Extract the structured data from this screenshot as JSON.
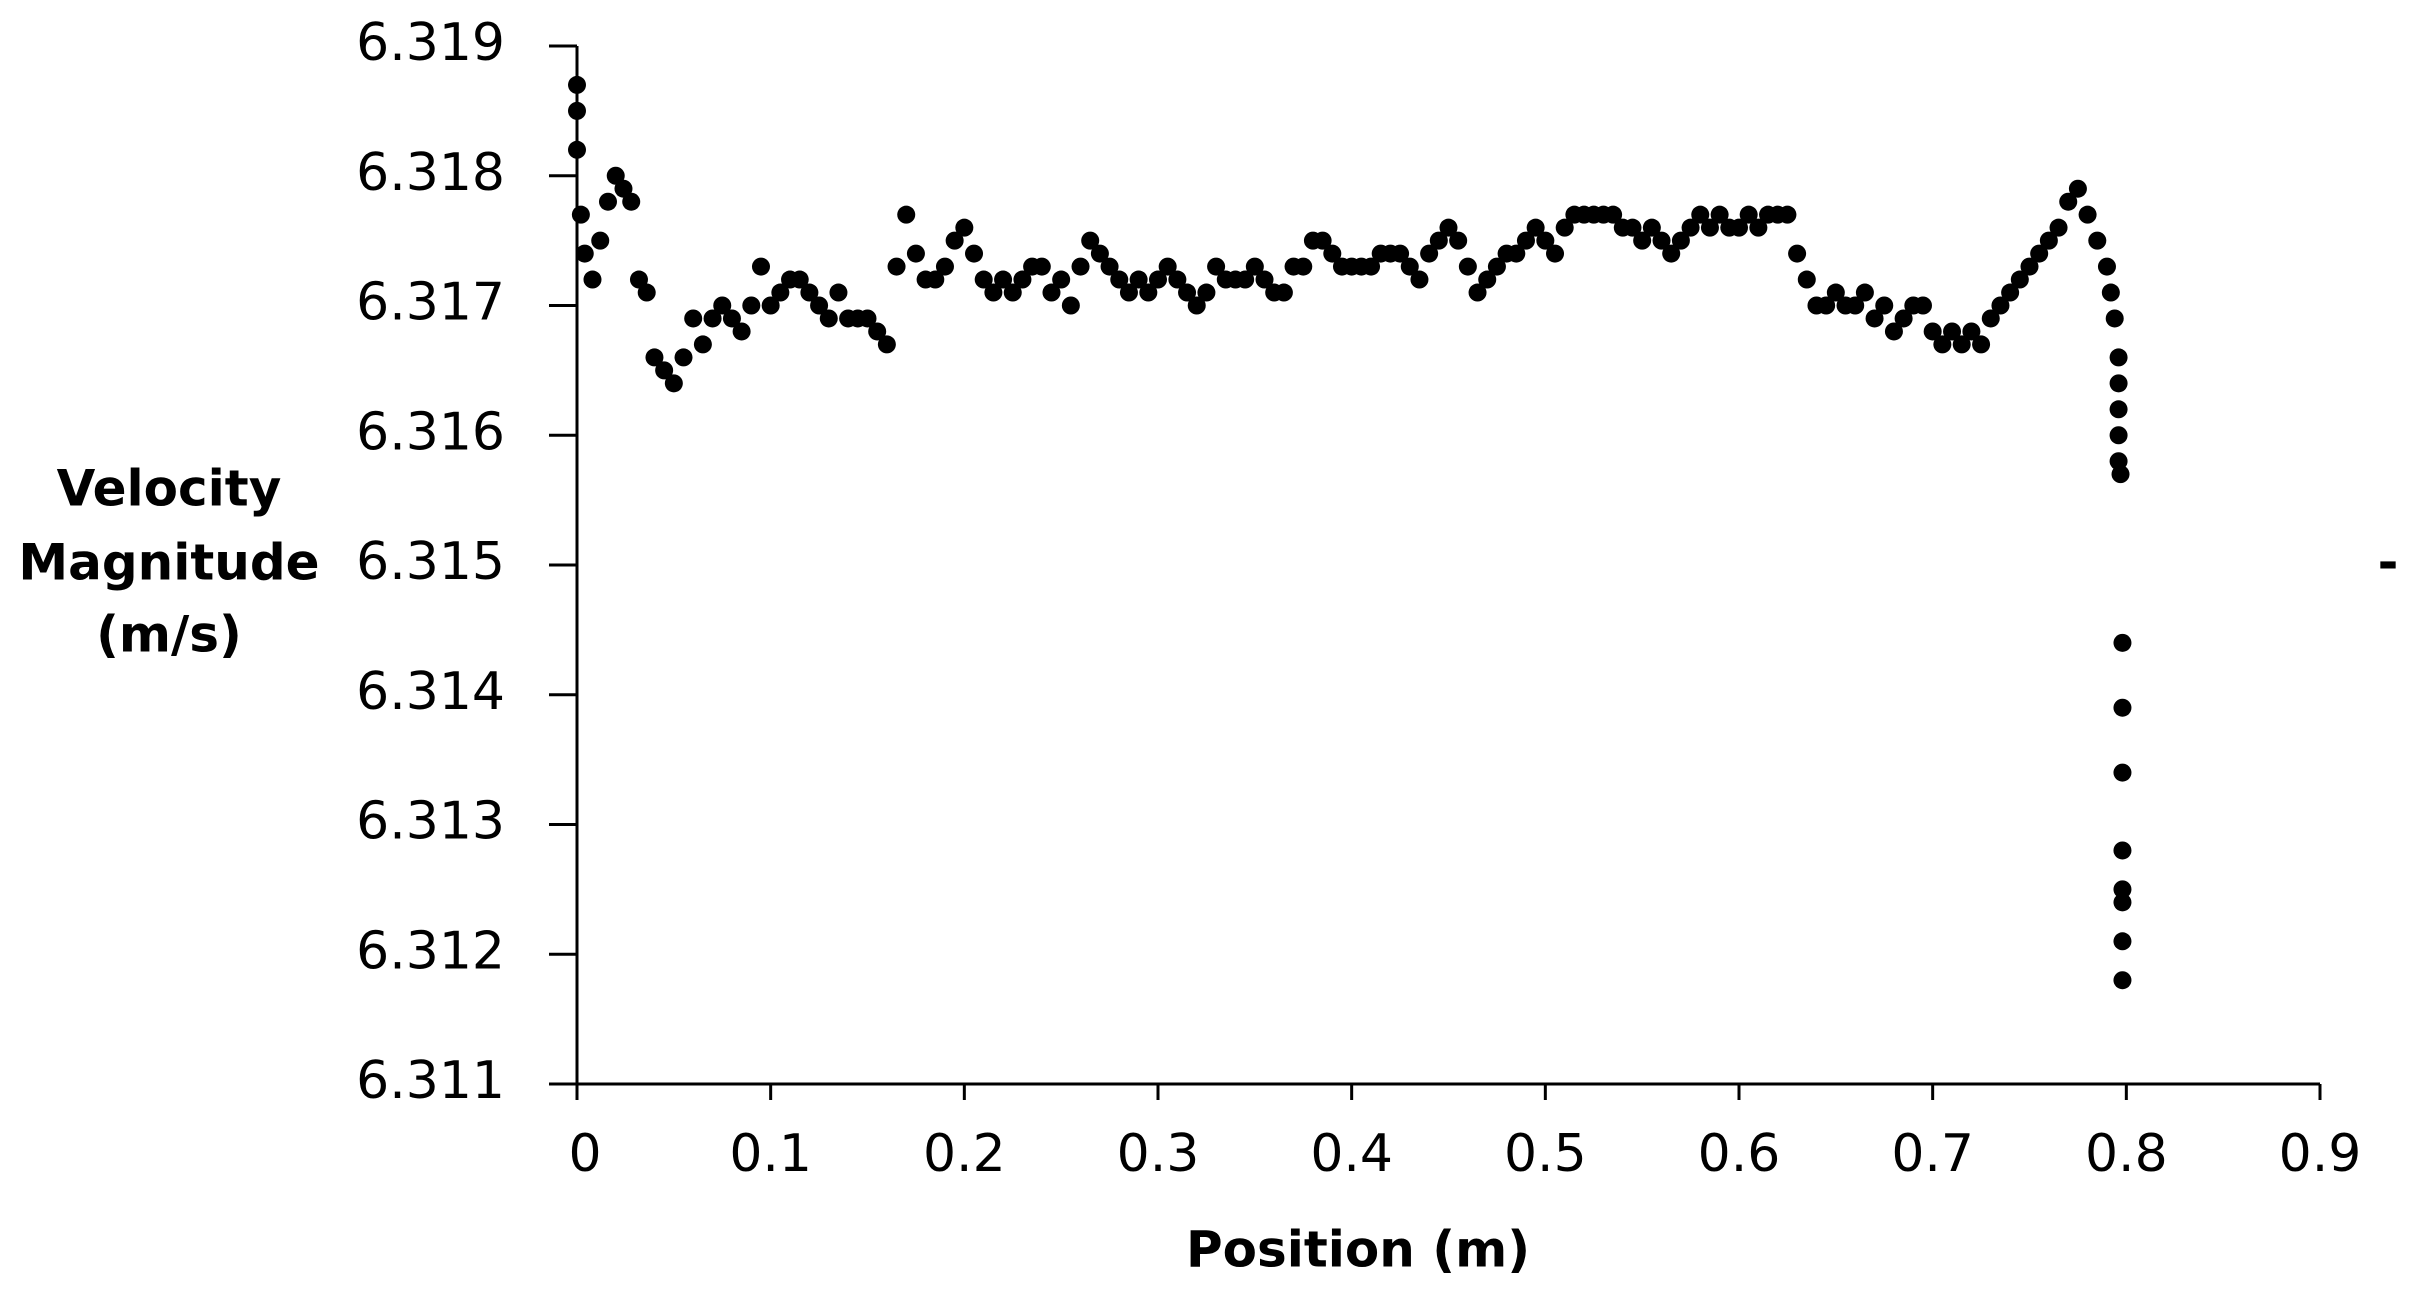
{
  "chart_data": {
    "type": "scatter",
    "x_label": "Position (m)",
    "y_label": [
      "Velocity",
      "Magnitude",
      "(m/s)"
    ],
    "annotation": "-",
    "color": "#000000",
    "xlim": [
      0,
      0.9
    ],
    "xticks": [
      0,
      0.1,
      0.2,
      0.3,
      0.4,
      0.5,
      0.6,
      0.7,
      0.8,
      0.9
    ],
    "ylim": [
      6.311,
      6.319
    ],
    "yticks": [
      6.311,
      6.312,
      6.313,
      6.314,
      6.315,
      6.316,
      6.317,
      6.318,
      6.319
    ],
    "x": [
      0,
      0,
      0,
      0.002,
      0.004,
      0.008,
      0.012,
      0.016,
      0.02,
      0.024,
      0.028,
      0.032,
      0.036,
      0.04,
      0.045,
      0.05,
      0.055,
      0.06,
      0.065,
      0.07,
      0.075,
      0.08,
      0.085,
      0.09,
      0.095,
      0.1,
      0.105,
      0.11,
      0.115,
      0.12,
      0.125,
      0.13,
      0.135,
      0.14,
      0.145,
      0.15,
      0.155,
      0.16,
      0.165,
      0.17,
      0.175,
      0.18,
      0.185,
      0.19,
      0.195,
      0.2,
      0.205,
      0.21,
      0.215,
      0.22,
      0.225,
      0.23,
      0.235,
      0.24,
      0.245,
      0.25,
      0.255,
      0.26,
      0.265,
      0.27,
      0.275,
      0.28,
      0.285,
      0.29,
      0.295,
      0.3,
      0.305,
      0.31,
      0.315,
      0.32,
      0.325,
      0.33,
      0.335,
      0.34,
      0.345,
      0.35,
      0.355,
      0.36,
      0.365,
      0.37,
      0.375,
      0.38,
      0.385,
      0.39,
      0.395,
      0.4,
      0.405,
      0.41,
      0.415,
      0.42,
      0.425,
      0.43,
      0.435,
      0.44,
      0.445,
      0.45,
      0.455,
      0.46,
      0.465,
      0.47,
      0.475,
      0.48,
      0.485,
      0.49,
      0.495,
      0.5,
      0.505,
      0.51,
      0.515,
      0.52,
      0.525,
      0.53,
      0.535,
      0.54,
      0.545,
      0.55,
      0.555,
      0.56,
      0.565,
      0.57,
      0.575,
      0.58,
      0.585,
      0.59,
      0.595,
      0.6,
      0.605,
      0.61,
      0.615,
      0.62,
      0.625,
      0.63,
      0.635,
      0.64,
      0.645,
      0.65,
      0.655,
      0.66,
      0.665,
      0.67,
      0.675,
      0.68,
      0.685,
      0.69,
      0.695,
      0.7,
      0.705,
      0.71,
      0.715,
      0.72,
      0.725,
      0.73,
      0.735,
      0.74,
      0.745,
      0.75,
      0.755,
      0.76,
      0.765,
      0.77,
      0.775,
      0.78,
      0.785,
      0.79,
      0.792,
      0.794,
      0.796,
      0.796,
      0.796,
      0.796,
      0.796,
      0.797,
      0.798,
      0.798,
      0.798,
      0.798,
      0.798,
      0.798,
      0.798,
      0.798
    ],
    "values": [
      6.3187,
      6.3185,
      6.3182,
      6.3177,
      6.3174,
      6.3172,
      6.3175,
      6.3178,
      6.318,
      6.3179,
      6.3178,
      6.3172,
      6.3171,
      6.3166,
      6.3165,
      6.3164,
      6.3166,
      6.3169,
      6.3167,
      6.3169,
      6.317,
      6.3169,
      6.3168,
      6.317,
      6.3173,
      6.317,
      6.3171,
      6.3172,
      6.3172,
      6.3171,
      6.317,
      6.3169,
      6.3171,
      6.3169,
      6.3169,
      6.3169,
      6.3168,
      6.3167,
      6.3173,
      6.3177,
      6.3174,
      6.3172,
      6.3172,
      6.3173,
      6.3175,
      6.3176,
      6.3174,
      6.3172,
      6.3171,
      6.3172,
      6.3171,
      6.3172,
      6.3173,
      6.3173,
      6.3171,
      6.3172,
      6.317,
      6.3173,
      6.3175,
      6.3174,
      6.3173,
      6.3172,
      6.3171,
      6.3172,
      6.3171,
      6.3172,
      6.3173,
      6.3172,
      6.3171,
      6.317,
      6.3171,
      6.3173,
      6.3172,
      6.3172,
      6.3172,
      6.3173,
      6.3172,
      6.3171,
      6.3171,
      6.3173,
      6.3173,
      6.3175,
      6.3175,
      6.3174,
      6.3173,
      6.3173,
      6.3173,
      6.3173,
      6.3174,
      6.3174,
      6.3174,
      6.3173,
      6.3172,
      6.3174,
      6.3175,
      6.3176,
      6.3175,
      6.3173,
      6.3171,
      6.3172,
      6.3173,
      6.3174,
      6.3174,
      6.3175,
      6.3176,
      6.3175,
      6.3174,
      6.3176,
      6.3177,
      6.3177,
      6.3177,
      6.3177,
      6.3177,
      6.3176,
      6.3176,
      6.3175,
      6.3176,
      6.3175,
      6.3174,
      6.3175,
      6.3176,
      6.3177,
      6.3176,
      6.3177,
      6.3176,
      6.3176,
      6.3177,
      6.3176,
      6.3177,
      6.3177,
      6.3177,
      6.3174,
      6.3172,
      6.317,
      6.317,
      6.3171,
      6.317,
      6.317,
      6.3171,
      6.3169,
      6.317,
      6.3168,
      6.3169,
      6.317,
      6.317,
      6.3168,
      6.3167,
      6.3168,
      6.3167,
      6.3168,
      6.3167,
      6.3169,
      6.317,
      6.3171,
      6.3172,
      6.3173,
      6.3174,
      6.3175,
      6.3176,
      6.3178,
      6.3179,
      6.3177,
      6.3175,
      6.3173,
      6.3171,
      6.3169,
      6.3166,
      6.3164,
      6.3162,
      6.316,
      6.3158,
      6.3157,
      6.3144,
      6.3139,
      6.3134,
      6.3128,
      6.3125,
      6.3124,
      6.3121,
      6.3118
    ]
  }
}
